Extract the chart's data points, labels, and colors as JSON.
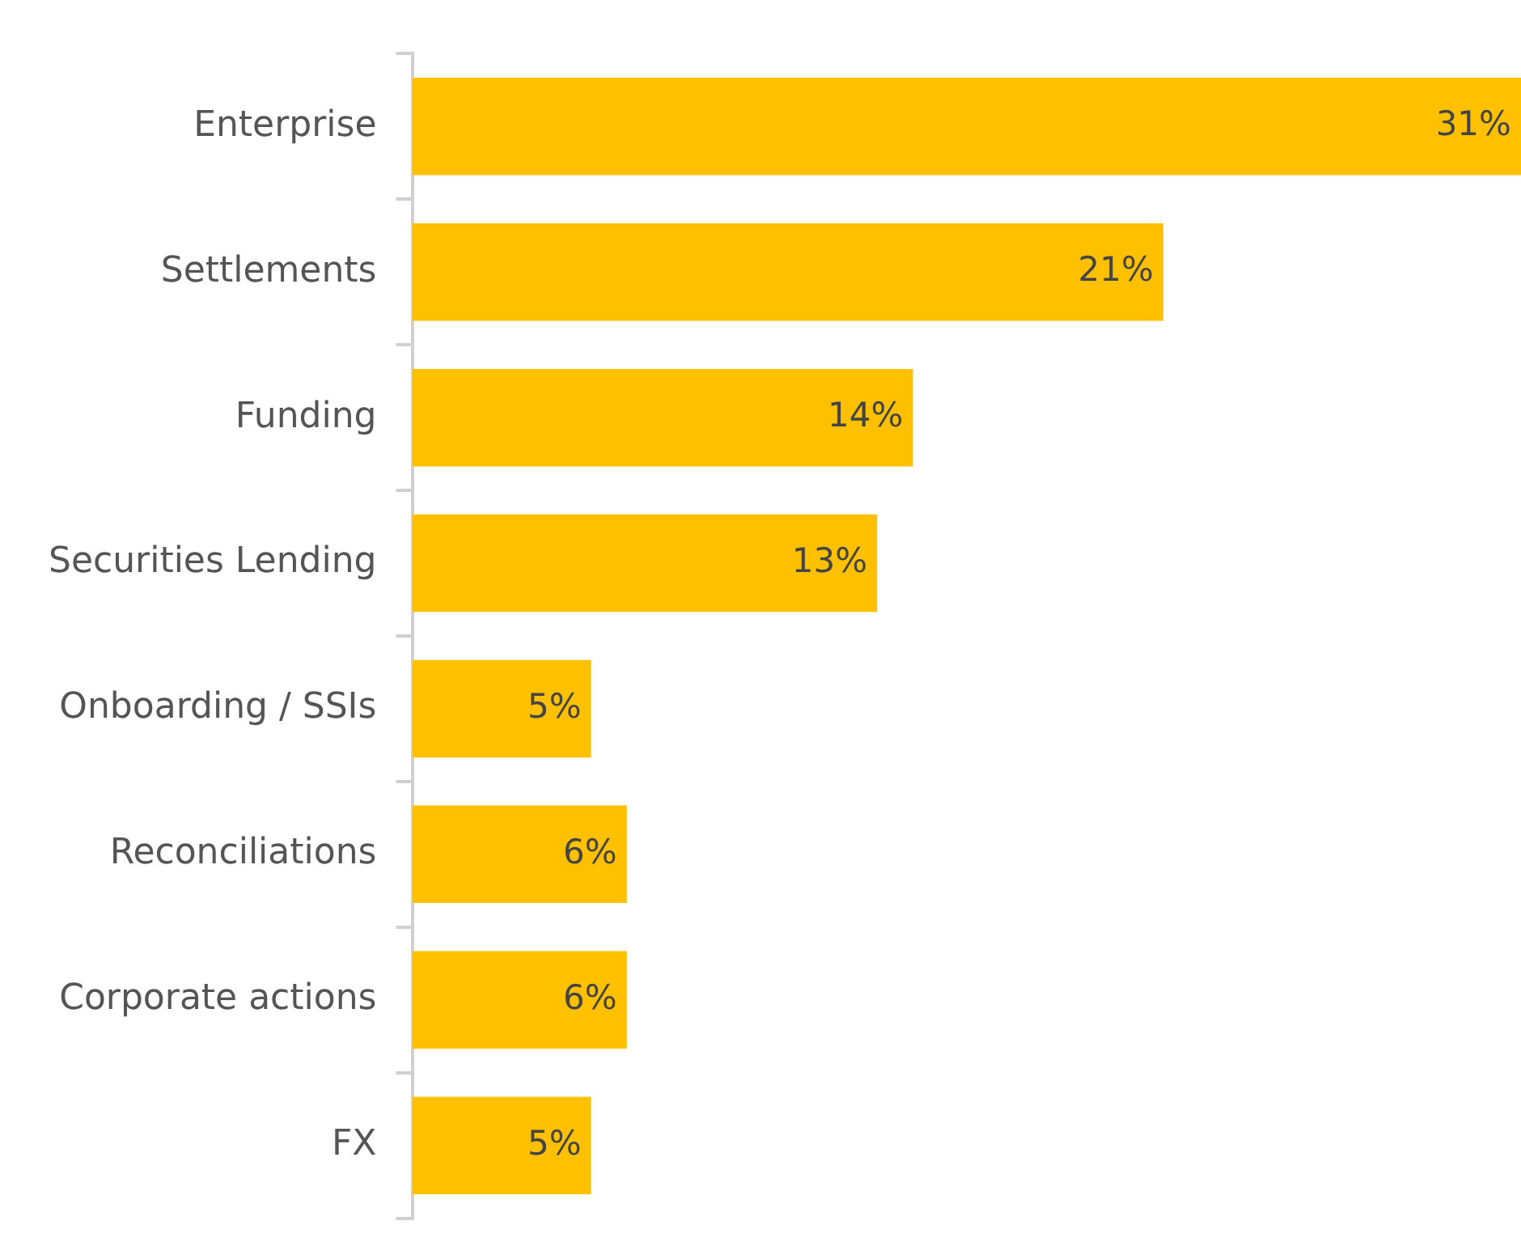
{
  "chart_data": {
    "type": "bar",
    "orientation": "horizontal",
    "categories": [
      "Enterprise",
      "Settlements",
      "Funding",
      "Securities Lending",
      "Onboarding / SSIs",
      "Reconciliations",
      "Corporate actions",
      "FX"
    ],
    "values": [
      31,
      21,
      14,
      13,
      5,
      6,
      6,
      5
    ],
    "value_labels": [
      "31%",
      "21%",
      "14%",
      "13%",
      "5%",
      "6%",
      "6%",
      "5%"
    ],
    "color": "#ffc000",
    "grid": false,
    "legend": false
  }
}
